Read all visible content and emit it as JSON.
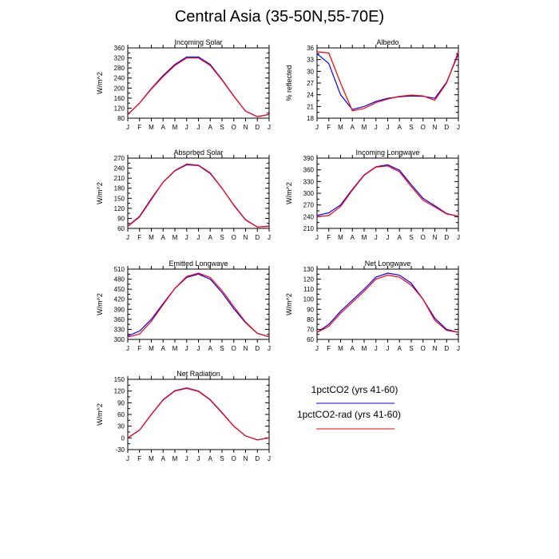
{
  "title": "Central Asia (35-50N,55-70E)",
  "months": [
    "J",
    "F",
    "M",
    "A",
    "M",
    "J",
    "J",
    "A",
    "S",
    "O",
    "N",
    "D",
    "J"
  ],
  "colors": {
    "series_1": "#0000ff",
    "series_2": "#ff0000"
  },
  "legend": {
    "items": [
      {
        "label": "1pctCO2 (yrs 41-60)",
        "color": "#0000ff"
      },
      {
        "label": "1pctCO2-rad (yrs 41-60)",
        "color": "#ff0000"
      }
    ]
  },
  "chart_data": [
    {
      "type": "line",
      "title": "Incoming Solar",
      "ylabel": "W/m^2",
      "ylim": [
        80,
        360
      ],
      "yticks": [
        80,
        120,
        160,
        200,
        240,
        280,
        320,
        360
      ],
      "categories": [
        "J",
        "F",
        "M",
        "A",
        "M",
        "J",
        "J",
        "A",
        "S",
        "O",
        "N",
        "D",
        "J"
      ],
      "series": [
        {
          "name": "1pctCO2 (yrs 41-60)",
          "values": [
            95,
            140,
            198,
            250,
            294,
            324,
            324,
            294,
            234,
            168,
            108,
            86,
            95
          ]
        },
        {
          "name": "1pctCO2-rad (yrs 41-60)",
          "values": [
            95,
            140,
            196,
            246,
            290,
            320,
            320,
            290,
            232,
            168,
            108,
            86,
            95
          ]
        }
      ]
    },
    {
      "type": "line",
      "title": "Albedo",
      "ylabel": "% reflected",
      "ylim": [
        18.0,
        36.0
      ],
      "yticks": [
        18.0,
        21.0,
        24.0,
        27.0,
        30.0,
        33.0,
        36.0
      ],
      "categories": [
        "J",
        "F",
        "M",
        "A",
        "M",
        "J",
        "J",
        "A",
        "S",
        "O",
        "N",
        "D",
        "J"
      ],
      "series": [
        {
          "name": "1pctCO2 (yrs 41-60)",
          "values": [
            34.5,
            32.0,
            24.0,
            20.2,
            21.0,
            22.3,
            23.1,
            23.5,
            23.7,
            23.6,
            23.1,
            27.2,
            34.5
          ]
        },
        {
          "name": "1pctCO2-rad (yrs 41-60)",
          "values": [
            35.0,
            34.7,
            27.0,
            19.9,
            20.5,
            22.0,
            22.9,
            23.6,
            23.9,
            23.7,
            22.6,
            27.0,
            35.0
          ]
        }
      ]
    },
    {
      "type": "line",
      "title": "Absorbed Solar",
      "ylabel": "W/m^2",
      "ylim": [
        60,
        270
      ],
      "yticks": [
        60,
        90,
        120,
        150,
        180,
        210,
        240,
        270
      ],
      "categories": [
        "J",
        "F",
        "M",
        "A",
        "M",
        "J",
        "J",
        "A",
        "S",
        "O",
        "N",
        "D",
        "J"
      ],
      "series": [
        {
          "name": "1pctCO2 (yrs 41-60)",
          "values": [
            67,
            96,
            149,
            198,
            232,
            250,
            248,
            224,
            180,
            130,
            86,
            64,
            67
          ]
        },
        {
          "name": "1pctCO2-rad (yrs 41-60)",
          "values": [
            66,
            94,
            146,
            198,
            233,
            252,
            249,
            226,
            180,
            129,
            85,
            64,
            66
          ]
        }
      ]
    },
    {
      "type": "line",
      "title": "Incoming Longwave",
      "ylabel": "W/m^2",
      "ylim": [
        210,
        390
      ],
      "yticks": [
        210,
        240,
        270,
        300,
        330,
        360,
        390
      ],
      "categories": [
        "J",
        "F",
        "M",
        "A",
        "M",
        "J",
        "J",
        "A",
        "S",
        "O",
        "N",
        "D",
        "J"
      ],
      "series": [
        {
          "name": "1pctCO2 (yrs 41-60)",
          "values": [
            243,
            250,
            270,
            310,
            347,
            368,
            373,
            359,
            322,
            287,
            268,
            248,
            241
          ]
        },
        {
          "name": "1pctCO2-rad (yrs 41-60)",
          "values": [
            240,
            243,
            266,
            308,
            346,
            367,
            370,
            355,
            317,
            282,
            265,
            247,
            241
          ]
        }
      ]
    },
    {
      "type": "line",
      "title": "Emitted Longwave",
      "ylabel": "W/m^2",
      "ylim": [
        300,
        510
      ],
      "yticks": [
        300,
        330,
        360,
        390,
        420,
        450,
        480,
        510
      ],
      "categories": [
        "J",
        "F",
        "M",
        "A",
        "M",
        "J",
        "J",
        "A",
        "S",
        "O",
        "N",
        "D",
        "J"
      ],
      "series": [
        {
          "name": "1pctCO2 (yrs 41-60)",
          "values": [
            310,
            325,
            360,
            407,
            452,
            485,
            495,
            480,
            440,
            392,
            350,
            318,
            308
          ]
        },
        {
          "name": "1pctCO2-rad (yrs 41-60)",
          "values": [
            307,
            316,
            354,
            404,
            452,
            488,
            498,
            485,
            446,
            398,
            352,
            318,
            308
          ]
        }
      ]
    },
    {
      "type": "line",
      "title": "Net Longwave",
      "ylabel": "W/m^2",
      "ylim": [
        60,
        130
      ],
      "yticks": [
        60,
        70,
        80,
        90,
        100,
        110,
        120,
        130
      ],
      "categories": [
        "J",
        "F",
        "M",
        "A",
        "M",
        "J",
        "J",
        "A",
        "S",
        "O",
        "N",
        "D",
        "J"
      ],
      "series": [
        {
          "name": "1pctCO2 (yrs 41-60)",
          "values": [
            67,
            75,
            88,
            99,
            110,
            122,
            126,
            124,
            116,
            100,
            81,
            70,
            67
          ]
        },
        {
          "name": "1pctCO2-rad (yrs 41-60)",
          "values": [
            67,
            73,
            86,
            97,
            108,
            120,
            124,
            122,
            114,
            100,
            79,
            69,
            67
          ]
        }
      ]
    },
    {
      "type": "line",
      "title": "Net Radiation",
      "ylabel": "W/m^2",
      "ylim": [
        -30,
        150
      ],
      "yticks": [
        -30,
        0,
        30,
        60,
        90,
        120,
        150
      ],
      "categories": [
        "J",
        "F",
        "M",
        "A",
        "M",
        "J",
        "J",
        "A",
        "S",
        "O",
        "N",
        "D",
        "J"
      ],
      "series": [
        {
          "name": "1pctCO2 (yrs 41-60)",
          "values": [
            0,
            20,
            60,
            98,
            121,
            128,
            120,
            98,
            65,
            30,
            5,
            -5,
            0
          ]
        },
        {
          "name": "1pctCO2-rad (yrs 41-60)",
          "values": [
            0,
            20,
            60,
            97,
            120,
            127,
            119,
            97,
            64,
            30,
            5,
            -5,
            0
          ]
        }
      ]
    }
  ]
}
